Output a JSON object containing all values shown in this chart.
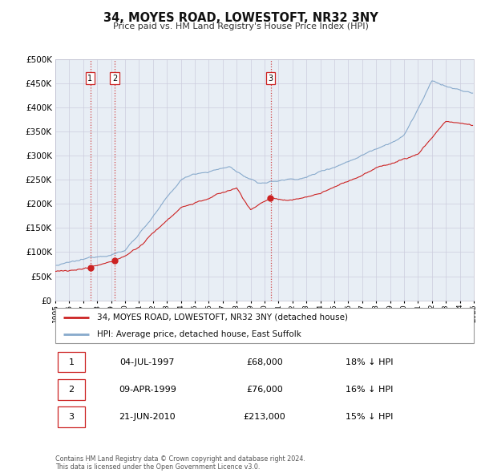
{
  "title": "34, MOYES ROAD, LOWESTOFT, NR32 3NY",
  "subtitle": "Price paid vs. HM Land Registry's House Price Index (HPI)",
  "legend_label_red": "34, MOYES ROAD, LOWESTOFT, NR32 3NY (detached house)",
  "legend_label_blue": "HPI: Average price, detached house, East Suffolk",
  "transactions": [
    {
      "num": 1,
      "date": "04-JUL-1997",
      "year": 1997.5,
      "price": 68000,
      "hpi_diff": "18% ↓ HPI"
    },
    {
      "num": 2,
      "date": "09-APR-1999",
      "year": 1999.25,
      "price": 76000,
      "hpi_diff": "16% ↓ HPI"
    },
    {
      "num": 3,
      "date": "21-JUN-2010",
      "year": 2010.45,
      "price": 213000,
      "hpi_diff": "15% ↓ HPI"
    }
  ],
  "footer": [
    "Contains HM Land Registry data © Crown copyright and database right 2024.",
    "This data is licensed under the Open Government Licence v3.0."
  ],
  "ylim": [
    0,
    500000
  ],
  "yticks": [
    0,
    50000,
    100000,
    150000,
    200000,
    250000,
    300000,
    350000,
    400000,
    450000,
    500000
  ],
  "xlim_start": 1995,
  "xlim_end": 2025,
  "red_color": "#cc2222",
  "blue_color": "#88aacc",
  "grid_color": "#ccccdd",
  "background_color": "#ffffff",
  "plot_bg_color": "#e8eef5"
}
